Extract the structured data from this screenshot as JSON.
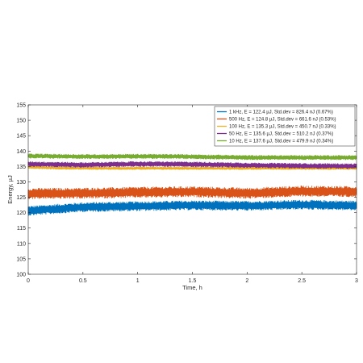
{
  "chart_data": {
    "type": "line",
    "xlabel": "Time, h",
    "ylabel": "Energy, µJ",
    "xlim": [
      0,
      3
    ],
    "ylim": [
      100,
      155
    ],
    "x_ticks": [
      0,
      0.5,
      1,
      1.5,
      2,
      2.5,
      3
    ],
    "x_tick_labels": [
      "0",
      "0.5",
      "1",
      "1.5",
      "2",
      "2.5",
      "3"
    ],
    "y_ticks": [
      100,
      105,
      110,
      115,
      120,
      125,
      130,
      135,
      140,
      145,
      150,
      155
    ],
    "y_tick_labels": [
      "100",
      "105",
      "110",
      "115",
      "120",
      "125",
      "130",
      "135",
      "140",
      "145",
      "150",
      "155"
    ],
    "grid": false,
    "legend_position": "top-right",
    "series": [
      {
        "name": "1 kHz, E = 122.4 µJ, Std.dev = 826.4 nJ (0.67%)",
        "color": "#0072BD",
        "x": [
          0,
          0.5,
          1,
          1.5,
          2,
          2.5,
          3
        ],
        "mean": [
          120.6,
          121.8,
          122.1,
          122.4,
          122.2,
          122.6,
          122.3
        ],
        "band": [
          1.6,
          1.6,
          1.6,
          1.6,
          1.6,
          1.6,
          1.6
        ]
      },
      {
        "name": "500 Hz, E = 124.8 µJ, Std.dev = 661.6 nJ (0.53%)",
        "color": "#D95319",
        "x": [
          0,
          0.5,
          1,
          1.5,
          2,
          2.5,
          3
        ],
        "mean": [
          126.2,
          126.3,
          126.6,
          126.8,
          126.3,
          127.0,
          126.8
        ],
        "band": [
          1.8,
          1.8,
          1.8,
          1.8,
          1.8,
          1.8,
          1.8
        ]
      },
      {
        "name": "100 Hz, E = 135.3 µJ, Std.dev = 450.7 nJ (0.33%)",
        "color": "#EDB120",
        "x": [
          0,
          0.25,
          0.5,
          3
        ],
        "mean": [
          134.8,
          134.5,
          134.4,
          134.4
        ],
        "band": [
          0.5,
          0.5,
          0.5,
          0.5
        ]
      },
      {
        "name": "50 Hz, E = 135.6 µJ, Std.dev = 510.2 nJ (0.37%)",
        "color": "#7E2F8E",
        "x": [
          0,
          0.5,
          1,
          1.5,
          2,
          2.5,
          3
        ],
        "mean": [
          135.8,
          135.5,
          135.8,
          135.7,
          135.4,
          135.2,
          135.1
        ],
        "band": [
          0.9,
          0.9,
          0.9,
          0.9,
          0.9,
          0.9,
          0.9
        ]
      },
      {
        "name": "10 Hz, E = 137.6 µJ, Std.dev = 479.9 nJ (0.34%)",
        "color": "#77AC30",
        "x": [
          0,
          0.5,
          1,
          1.5,
          2,
          2.5,
          3
        ],
        "mean": [
          138.4,
          138.2,
          138.3,
          138.2,
          137.9,
          137.9,
          137.9
        ],
        "band": [
          0.8,
          0.8,
          0.8,
          0.8,
          0.8,
          0.8,
          0.8
        ]
      }
    ]
  }
}
